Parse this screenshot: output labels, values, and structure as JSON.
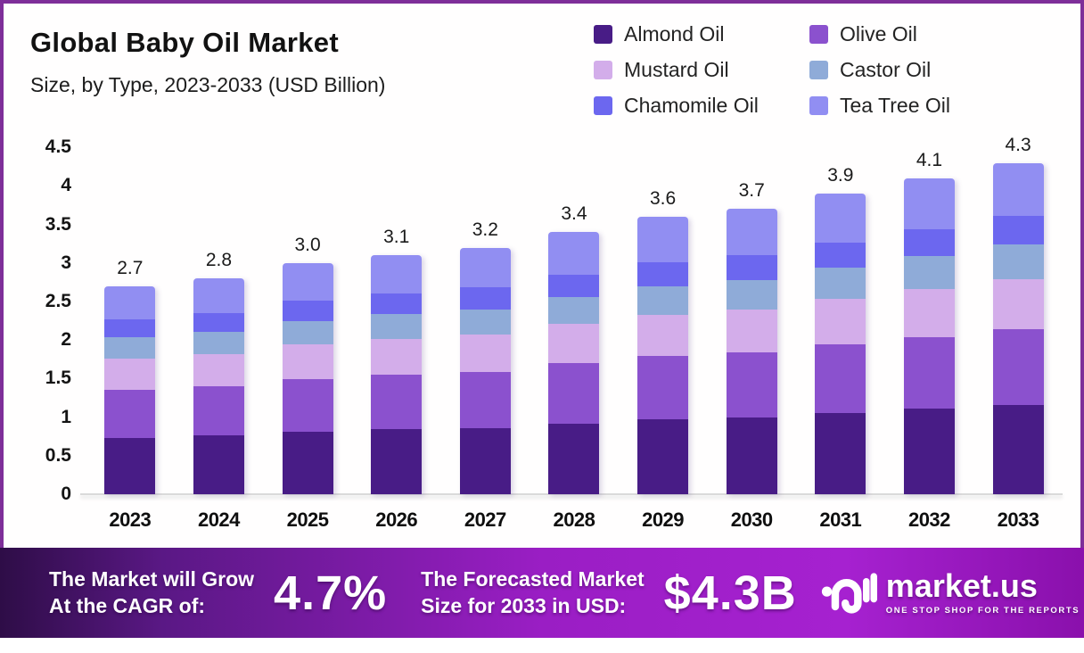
{
  "chart_data": {
    "type": "bar",
    "stacked": true,
    "title": "Global Baby Oil Market",
    "subtitle": "Size, by Type, 2023-2033 (USD Billion)",
    "categories": [
      "2023",
      "2024",
      "2025",
      "2026",
      "2027",
      "2028",
      "2029",
      "2030",
      "2031",
      "2032",
      "2033"
    ],
    "series": [
      {
        "name": "Almond Oil",
        "color": "#481c86",
        "values": [
          0.73,
          0.76,
          0.81,
          0.84,
          0.86,
          0.92,
          0.97,
          1.0,
          1.05,
          1.11,
          1.16
        ]
      },
      {
        "name": "Olive Oil",
        "color": "#8b51ce",
        "values": [
          0.62,
          0.64,
          0.68,
          0.71,
          0.73,
          0.78,
          0.82,
          0.84,
          0.89,
          0.93,
          0.98
        ]
      },
      {
        "name": "Mustard Oil",
        "color": "#d3adea",
        "values": [
          0.41,
          0.42,
          0.45,
          0.47,
          0.48,
          0.51,
          0.54,
          0.56,
          0.59,
          0.62,
          0.65
        ]
      },
      {
        "name": "Castor Oil",
        "color": "#8fabd8",
        "values": [
          0.28,
          0.29,
          0.31,
          0.32,
          0.33,
          0.35,
          0.37,
          0.38,
          0.41,
          0.43,
          0.45
        ]
      },
      {
        "name": "Chamomile Oil",
        "color": "#6c67ef",
        "values": [
          0.23,
          0.24,
          0.26,
          0.27,
          0.28,
          0.29,
          0.31,
          0.32,
          0.33,
          0.35,
          0.37
        ]
      },
      {
        "name": "Tea Tree Oil",
        "color": "#918ef2",
        "values": [
          0.43,
          0.45,
          0.49,
          0.49,
          0.52,
          0.55,
          0.59,
          0.6,
          0.63,
          0.66,
          0.69
        ]
      }
    ],
    "totals_labels": [
      "2.7",
      "2.8",
      "3.0",
      "3.1",
      "3.2",
      "3.4",
      "3.6",
      "3.7",
      "3.9",
      "4.1",
      "4.3"
    ],
    "y_ticks": [
      "4.5",
      "4",
      "3.5",
      "3",
      "2.5",
      "2",
      "1.5",
      "1",
      "0.5",
      "0"
    ],
    "ylim": [
      0,
      4.5
    ],
    "xlabel": "",
    "ylabel": "",
    "grid": false,
    "legend_position": "top-right"
  },
  "banner": {
    "cagr_label_line1": "The Market will Grow",
    "cagr_label_line2": "At the CAGR of:",
    "cagr_value": "4.7%",
    "forecast_label_line1": "The Forecasted Market",
    "forecast_label_line2": "Size for 2033 in USD:",
    "forecast_value": "$4.3B"
  },
  "brand": {
    "name": "market.us",
    "tagline": "ONE STOP SHOP FOR THE REPORTS"
  },
  "colors": {
    "card_border": "#7e2e99",
    "banner_gradient": [
      "#2e0d47",
      "#5a1885",
      "#9a1ec4",
      "#a621d0",
      "#8a10ac"
    ],
    "axis_line": "#dadada"
  }
}
